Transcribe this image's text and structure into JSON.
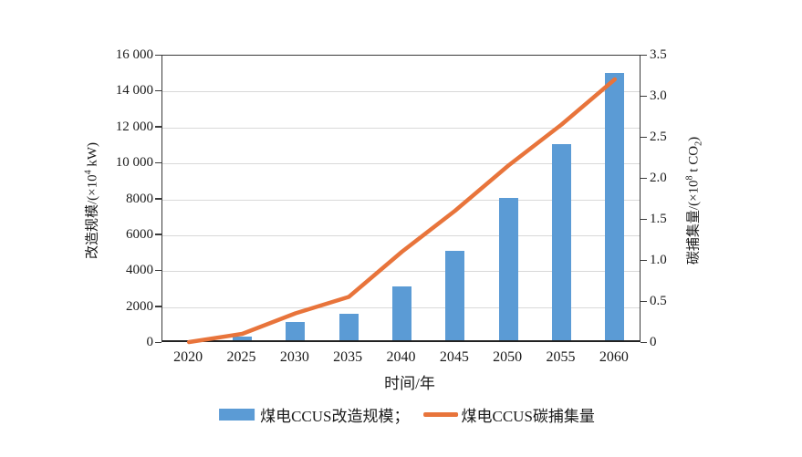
{
  "chart_data": {
    "type": "combo-bar-line",
    "categories": [
      "2020",
      "2025",
      "2030",
      "2035",
      "2040",
      "2045",
      "2050",
      "2055",
      "2060"
    ],
    "series": [
      {
        "name": "煤电CCUS改造规模",
        "type": "bar",
        "axis": "left",
        "color": "#5B9BD5",
        "values": [
          0,
          200,
          1000,
          1500,
          3000,
          5000,
          8000,
          11000,
          15000
        ]
      },
      {
        "name": "煤电CCUS碳捕集量",
        "type": "line",
        "axis": "right",
        "color": "#E8743B",
        "values": [
          0,
          0.1,
          0.35,
          0.55,
          1.1,
          1.6,
          2.15,
          2.65,
          3.2
        ]
      }
    ],
    "left_axis": {
      "title": "改造规模/(×10⁴ kW)",
      "title_pre": "改造规模/(×10",
      "title_sup": "4",
      "title_post": " kW)",
      "min": 0,
      "max": 16000,
      "tick_labels": [
        "0",
        "2000",
        "4000",
        "6000",
        "8000",
        "10 000",
        "12 000",
        "14 000",
        "16 000"
      ]
    },
    "right_axis": {
      "title": "碳捕集量/(×10⁸ t CO₂)",
      "title_pre": "碳捕集量/(×10",
      "title_sup": "8",
      "title_mid": " t CO",
      "title_sub": "2",
      "title_end": ")",
      "min": 0,
      "max": 3.5,
      "tick_labels": [
        "0",
        "0.5",
        "1.0",
        "1.5",
        "2.0",
        "2.5",
        "3.0",
        "3.5"
      ]
    },
    "x_axis": {
      "title": "时间/年"
    },
    "grid": "horizontal",
    "legend": {
      "position": "bottom",
      "items": [
        {
          "label": "煤电CCUS改造规模；",
          "marker": "bar-swatch"
        },
        {
          "label": "煤电CCUS碳捕集量",
          "marker": "line-swatch"
        }
      ]
    },
    "colors": {
      "bar": "#5B9BD5",
      "line": "#E8743B",
      "gridline": "#D9D9D9",
      "spine": "#3A3A3A",
      "text": "#1A1A1A"
    }
  }
}
